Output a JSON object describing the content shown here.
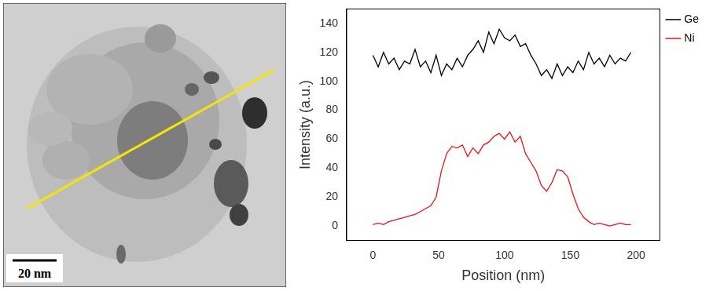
{
  "image": {
    "scale_bar": "20 nm"
  },
  "chart_data": {
    "type": "line",
    "x": [
      0,
      4,
      8,
      12,
      16,
      20,
      24,
      28,
      32,
      36,
      40,
      44,
      48,
      52,
      56,
      60,
      64,
      68,
      72,
      76,
      80,
      84,
      88,
      92,
      96,
      100,
      104,
      108,
      112,
      116,
      120,
      124,
      128,
      132,
      136,
      140,
      144,
      148,
      152,
      156,
      160,
      164,
      168,
      172,
      176,
      180,
      184,
      188,
      192,
      196
    ],
    "series": [
      {
        "name": "Ge",
        "color": "#000000",
        "values": [
          118,
          110,
          120,
          112,
          116,
          108,
          114,
          112,
          122,
          110,
          114,
          106,
          118,
          104,
          112,
          108,
          116,
          110,
          118,
          122,
          128,
          120,
          134,
          126,
          136,
          130,
          128,
          132,
          124,
          126,
          118,
          112,
          104,
          108,
          102,
          112,
          104,
          110,
          106,
          114,
          108,
          120,
          112,
          116,
          110,
          118,
          112,
          116,
          114,
          120
        ]
      },
      {
        "name": "Ni",
        "color": "#e8141a",
        "values": [
          1,
          2,
          1,
          3,
          4,
          5,
          6,
          7,
          8,
          10,
          12,
          14,
          20,
          38,
          50,
          55,
          54,
          56,
          48,
          54,
          50,
          56,
          58,
          62,
          64,
          60,
          65,
          58,
          62,
          50,
          44,
          38,
          28,
          24,
          30,
          39,
          38,
          34,
          22,
          12,
          6,
          3,
          1,
          2,
          1,
          0,
          1,
          2,
          1,
          1
        ]
      }
    ],
    "x_label": "Position (nm)",
    "y_label": "Intensity (a.u.)",
    "xlim": [
      -20,
      218
    ],
    "xticks": [
      0,
      50,
      100,
      150,
      200
    ],
    "ylim": [
      -10,
      150
    ],
    "yticks": [
      0,
      20,
      40,
      60,
      80,
      100,
      120,
      140
    ],
    "grid": false,
    "legend": "right"
  }
}
